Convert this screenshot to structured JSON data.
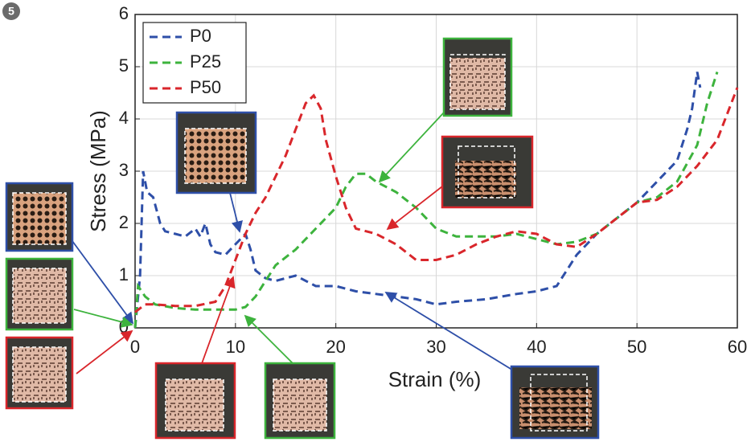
{
  "figure_label": "5",
  "chart_data": {
    "type": "line",
    "xlabel": "Strain (%)",
    "ylabel": "Stress (MPa)",
    "xlim": [
      0,
      60
    ],
    "ylim": [
      0,
      6
    ],
    "xticks": [
      0,
      10,
      20,
      30,
      40,
      50,
      60
    ],
    "yticks": [
      0,
      1,
      2,
      3,
      4,
      5,
      6
    ],
    "grid": true,
    "legend": "upper left",
    "series": [
      {
        "name": "P0",
        "color": "#2e4fa8",
        "x": [
          0,
          0.5,
          0.8,
          1.2,
          1.8,
          2.5,
          3,
          4,
          5,
          6,
          6.5,
          7,
          7.5,
          8,
          9,
          10,
          11,
          11.5,
          12,
          13,
          14,
          16,
          18,
          20,
          22,
          24,
          26,
          28,
          30,
          32,
          35,
          38,
          40,
          42,
          43,
          44,
          46,
          48,
          50,
          52,
          54,
          55,
          55.5,
          56,
          56.3
        ],
        "values": [
          0,
          1,
          3.0,
          2.6,
          2.5,
          2.0,
          1.85,
          1.8,
          1.75,
          1.9,
          1.75,
          2.0,
          1.6,
          1.45,
          1.4,
          1.6,
          1.8,
          1.5,
          1.1,
          0.95,
          0.9,
          1.0,
          0.8,
          0.8,
          0.7,
          0.65,
          0.6,
          0.55,
          0.45,
          0.5,
          0.55,
          0.65,
          0.7,
          0.8,
          1.1,
          1.4,
          1.8,
          2.1,
          2.4,
          2.8,
          3.2,
          3.8,
          4.2,
          4.9,
          4.6
        ]
      },
      {
        "name": "P25",
        "color": "#3db33d",
        "x": [
          0,
          0.3,
          1,
          2,
          4,
          6,
          8,
          10,
          11,
          12,
          13,
          14,
          16,
          18,
          20,
          21,
          22,
          23,
          24,
          26,
          28,
          30,
          32,
          34,
          36,
          38,
          40,
          42,
          44,
          46,
          48,
          50,
          52,
          54,
          56,
          57,
          58
        ],
        "values": [
          0,
          0.8,
          0.6,
          0.45,
          0.38,
          0.35,
          0.35,
          0.35,
          0.4,
          0.6,
          0.9,
          1.2,
          1.5,
          1.9,
          2.3,
          2.7,
          2.95,
          2.95,
          2.8,
          2.6,
          2.3,
          1.9,
          1.75,
          1.75,
          1.75,
          1.8,
          1.7,
          1.6,
          1.65,
          1.8,
          2.1,
          2.4,
          2.5,
          2.8,
          3.5,
          4.3,
          4.9
        ]
      },
      {
        "name": "P50",
        "color": "#d9262b",
        "x": [
          0,
          1,
          2,
          4,
          6,
          8,
          9,
          10,
          11,
          12,
          13,
          14,
          15,
          16,
          17,
          17.8,
          18.5,
          19,
          20,
          21,
          22,
          24,
          26,
          28,
          30,
          32,
          34,
          36,
          38,
          40,
          41,
          42,
          44,
          46,
          48,
          50,
          52,
          54,
          56,
          58,
          60
        ],
        "values": [
          0.3,
          0.45,
          0.45,
          0.42,
          0.42,
          0.5,
          0.8,
          1.3,
          1.8,
          2.2,
          2.5,
          2.9,
          3.3,
          3.8,
          4.3,
          4.45,
          4.2,
          3.6,
          2.9,
          2.3,
          1.9,
          1.8,
          1.6,
          1.3,
          1.3,
          1.4,
          1.6,
          1.75,
          1.85,
          1.8,
          1.7,
          1.6,
          1.55,
          1.8,
          2.1,
          2.4,
          2.45,
          2.7,
          3.1,
          3.6,
          4.6
        ]
      }
    ]
  }
}
